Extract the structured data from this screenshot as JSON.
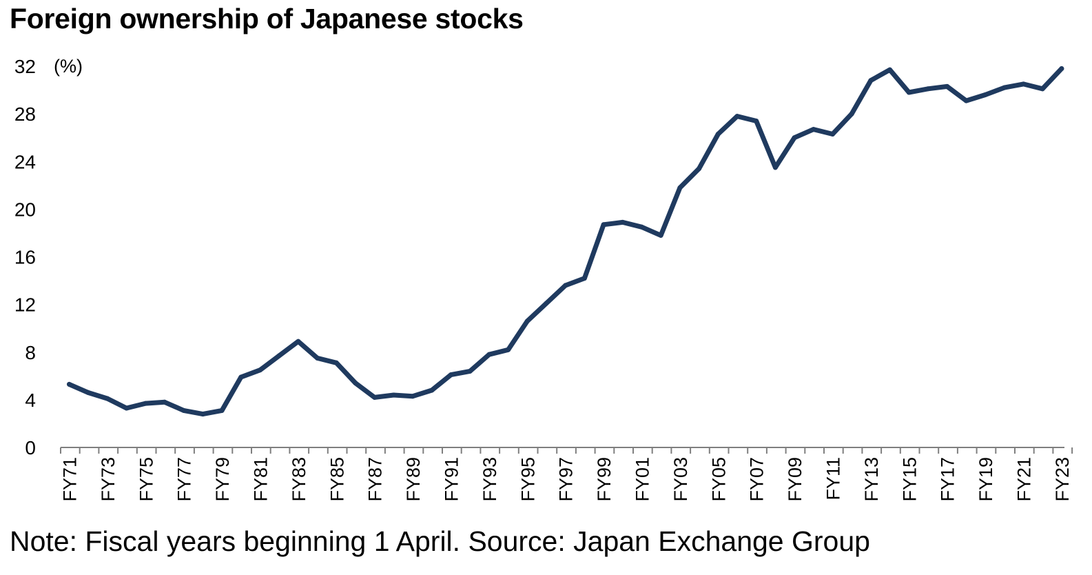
{
  "chart_data": {
    "type": "line",
    "title": "Foreign ownership of Japanese stocks",
    "ylabel": "(%)",
    "xlabel": "",
    "ylim": [
      0,
      32
    ],
    "yticks": [
      0,
      4,
      8,
      12,
      16,
      20,
      24,
      28,
      32
    ],
    "grid": false,
    "colors": {
      "line": "#1f3a5f",
      "axis": "#7f7f7f",
      "text": "#000000"
    },
    "x_tick_labels": [
      "FY71",
      "FY73",
      "FY75",
      "FY77",
      "FY79",
      "FY81",
      "FY83",
      "FY85",
      "FY87",
      "FY89",
      "FY91",
      "FY93",
      "FY95",
      "FY97",
      "FY99",
      "FY01",
      "FY03",
      "FY05",
      "FY07",
      "FY09",
      "FY11",
      "FY13",
      "FY15",
      "FY17",
      "FY19",
      "FY21",
      "FY23"
    ],
    "series": [
      {
        "name": "Foreign ownership",
        "x": [
          1971,
          1972,
          1973,
          1974,
          1975,
          1976,
          1977,
          1978,
          1979,
          1980,
          1981,
          1982,
          1983,
          1984,
          1985,
          1986,
          1987,
          1988,
          1989,
          1990,
          1991,
          1992,
          1993,
          1994,
          1995,
          1996,
          1997,
          1998,
          1999,
          2000,
          2001,
          2002,
          2003,
          2004,
          2005,
          2006,
          2007,
          2008,
          2009,
          2010,
          2011,
          2012,
          2013,
          2014,
          2015,
          2016,
          2017,
          2018,
          2019,
          2020,
          2021,
          2022,
          2023
        ],
        "values": [
          5.3,
          4.6,
          4.1,
          3.3,
          3.7,
          3.8,
          3.1,
          2.8,
          3.1,
          5.9,
          6.5,
          7.7,
          8.9,
          7.5,
          7.1,
          5.4,
          4.2,
          4.4,
          4.3,
          4.8,
          6.1,
          6.4,
          7.8,
          8.2,
          10.6,
          12.1,
          13.6,
          14.2,
          18.7,
          18.9,
          18.5,
          17.8,
          21.8,
          23.4,
          26.3,
          27.8,
          27.4,
          23.5,
          26.0,
          26.7,
          26.3,
          28.0,
          30.8,
          31.7,
          29.8,
          30.1,
          30.3,
          29.1,
          29.6,
          30.2,
          30.5,
          30.1,
          31.8
        ]
      }
    ]
  },
  "note": "Note: Fiscal years beginning 1 April. Source: Japan Exchange Group"
}
